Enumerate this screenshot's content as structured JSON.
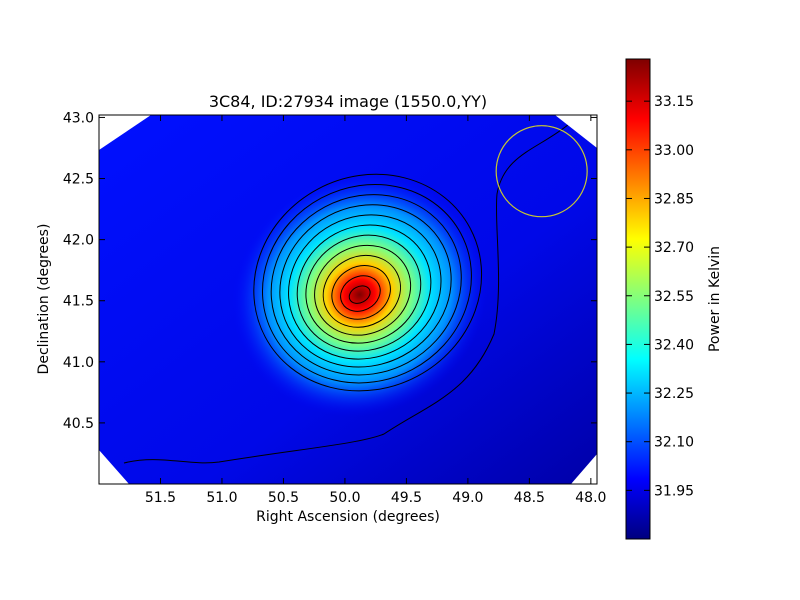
{
  "chart_data": {
    "type": "heatmap",
    "title": "3C84, ID:27934 image (1550.0,YY)",
    "xlabel": "Right Ascension (degrees)",
    "ylabel": "Declination (degrees)",
    "xlim": [
      52.0,
      47.95
    ],
    "ylim": [
      40.0,
      43.02
    ],
    "xticks": [
      "51.5",
      "51.0",
      "50.5",
      "50.0",
      "49.5",
      "49.0",
      "48.5",
      "48.0"
    ],
    "xtick_values": [
      51.5,
      51.0,
      50.5,
      50.0,
      49.5,
      49.0,
      48.5,
      48.0
    ],
    "yticks": [
      "40.5",
      "41.0",
      "41.5",
      "42.0",
      "42.5",
      "43.0"
    ],
    "ytick_values": [
      40.5,
      41.0,
      41.5,
      42.0,
      42.5,
      43.0
    ],
    "source": {
      "ra": 49.88,
      "dec": 41.55,
      "peak_kelvin": 33.25
    },
    "background_kelvin": 31.95,
    "contours": 12,
    "beam": {
      "ra": 48.4,
      "dec": 42.56,
      "radius_deg": 0.37,
      "color": "#c8c832"
    },
    "colorbar": {
      "label": "Power in Kelvin",
      "vmin": 31.8,
      "vmax": 33.28,
      "ticks": [
        "31.95",
        "32.10",
        "32.25",
        "32.40",
        "32.55",
        "32.70",
        "32.85",
        "33.00",
        "33.15"
      ],
      "tick_values": [
        31.95,
        32.1,
        32.25,
        32.4,
        32.55,
        32.7,
        32.85,
        33.0,
        33.15
      ],
      "colormap": "jet"
    },
    "grid": false,
    "legend": "none"
  }
}
